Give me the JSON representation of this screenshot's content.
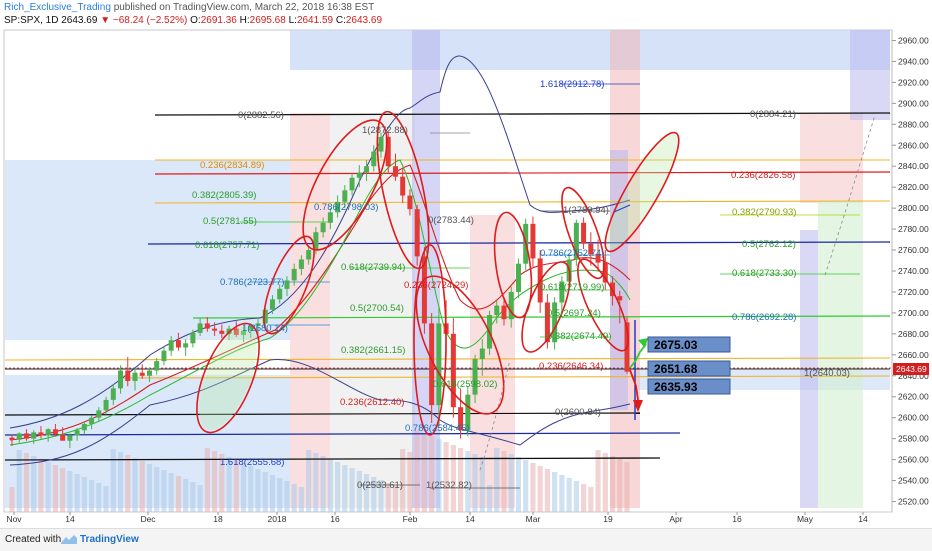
{
  "header": {
    "author": "Rich_Exclusive_Trading",
    "published": "published on TradingView.com, March 22, 2018 16:38 EST",
    "symbol": "SP:SPX, 1D",
    "last": "2643.69",
    "arrow": "▼",
    "change": "−68.24 (−2.52%)",
    "o_label": "O:",
    "o": "2691.36",
    "h_label": "H:",
    "h": "2695.68",
    "l_label": "L:",
    "l": "2641.59",
    "c_label": "C:",
    "c": "2643.69"
  },
  "footer": {
    "created_with": "Created with",
    "brand": "TradingView"
  },
  "chart_data": {
    "type": "candlestick",
    "y_axis": {
      "range": [
        2510,
        2970
      ],
      "ticks": [
        2520,
        2540,
        2560,
        2580,
        2600,
        2620,
        2640,
        2660,
        2680,
        2700,
        2720,
        2740,
        2760,
        2780,
        2800,
        2820,
        2840,
        2860,
        2880,
        2900,
        2920,
        2940,
        2960
      ]
    },
    "x_axis": {
      "labels": [
        "Nov",
        "14",
        "Dec",
        "18",
        "2018",
        "16",
        "Feb",
        "14",
        "Mar",
        "19",
        "Apr",
        "16",
        "May",
        "14"
      ]
    },
    "last_price": "2643.69",
    "price_boxes": [
      "2675.03",
      "2651.68",
      "2635.93"
    ],
    "fib_labels": [
      "0(2882.56)",
      "0.236(2834.89)",
      "0.382(2805.39)",
      "0.5(2781.55)",
      "0.618(2757.71)",
      "0.786(2723.77)",
      "1(2680.14)",
      "1(2872.88)",
      "0.786(2798.03)",
      "0.618(2739.94)",
      "0.5(2700.54)",
      "0.382(2661.15)",
      "0.236(2612.40)",
      "0.786(2584.45)",
      "1.618(2555.68)",
      "0(2533.61)",
      "1(2532.82)",
      "0(2783.44)",
      "0.236(2724.29)",
      "0.236(2646.34)",
      "0.382(2674.49)",
      "0.5(2697.24)",
      "0.618(2719.99)",
      "0.786(2752.74)",
      "1(2789.94)",
      "0(2600.84)",
      "1.618(2912.78)",
      "0(2884.21)",
      "0.236(2826.58)",
      "0.382(2790.93)",
      "0.5(2762.12)",
      "0.618(2733.30)",
      "0.786(2692.28)",
      "1(2640.03)",
      "0.618(2598.02)"
    ],
    "candles": [
      {
        "o": 2581,
        "h": 2584,
        "l": 2573,
        "c": 2579
      },
      {
        "o": 2579,
        "h": 2586,
        "l": 2576,
        "c": 2585
      },
      {
        "o": 2585,
        "h": 2589,
        "l": 2578,
        "c": 2580
      },
      {
        "o": 2580,
        "h": 2588,
        "l": 2575,
        "c": 2586
      },
      {
        "o": 2586,
        "h": 2592,
        "l": 2580,
        "c": 2583
      },
      {
        "o": 2583,
        "h": 2590,
        "l": 2577,
        "c": 2589
      },
      {
        "o": 2589,
        "h": 2594,
        "l": 2582,
        "c": 2584
      },
      {
        "o": 2584,
        "h": 2591,
        "l": 2579,
        "c": 2578
      },
      {
        "o": 2578,
        "h": 2585,
        "l": 2571,
        "c": 2583
      },
      {
        "o": 2583,
        "h": 2590,
        "l": 2578,
        "c": 2588
      },
      {
        "o": 2588,
        "h": 2596,
        "l": 2584,
        "c": 2594
      },
      {
        "o": 2594,
        "h": 2602,
        "l": 2589,
        "c": 2600
      },
      {
        "o": 2600,
        "h": 2610,
        "l": 2596,
        "c": 2607
      },
      {
        "o": 2607,
        "h": 2620,
        "l": 2603,
        "c": 2617
      },
      {
        "o": 2617,
        "h": 2632,
        "l": 2612,
        "c": 2628
      },
      {
        "o": 2628,
        "h": 2650,
        "l": 2623,
        "c": 2645
      },
      {
        "o": 2645,
        "h": 2658,
        "l": 2630,
        "c": 2635
      },
      {
        "o": 2635,
        "h": 2647,
        "l": 2626,
        "c": 2643
      },
      {
        "o": 2643,
        "h": 2651,
        "l": 2637,
        "c": 2640
      },
      {
        "o": 2640,
        "h": 2648,
        "l": 2634,
        "c": 2645
      },
      {
        "o": 2645,
        "h": 2657,
        "l": 2641,
        "c": 2654
      },
      {
        "o": 2654,
        "h": 2668,
        "l": 2650,
        "c": 2664
      },
      {
        "o": 2664,
        "h": 2678,
        "l": 2659,
        "c": 2674
      },
      {
        "o": 2674,
        "h": 2681,
        "l": 2664,
        "c": 2667
      },
      {
        "o": 2667,
        "h": 2675,
        "l": 2659,
        "c": 2671
      },
      {
        "o": 2671,
        "h": 2684,
        "l": 2667,
        "c": 2681
      },
      {
        "o": 2681,
        "h": 2695,
        "l": 2678,
        "c": 2690
      },
      {
        "o": 2690,
        "h": 2696,
        "l": 2682,
        "c": 2685
      },
      {
        "o": 2685,
        "h": 2691,
        "l": 2678,
        "c": 2683
      },
      {
        "o": 2683,
        "h": 2689,
        "l": 2676,
        "c": 2680
      },
      {
        "o": 2680,
        "h": 2688,
        "l": 2674,
        "c": 2685
      },
      {
        "o": 2685,
        "h": 2692,
        "l": 2677,
        "c": 2679
      },
      {
        "o": 2679,
        "h": 2687,
        "l": 2672,
        "c": 2683
      },
      {
        "o": 2683,
        "h": 2690,
        "l": 2676,
        "c": 2688
      },
      {
        "o": 2688,
        "h": 2696,
        "l": 2680,
        "c": 2690
      },
      {
        "o": 2690,
        "h": 2705,
        "l": 2687,
        "c": 2703
      },
      {
        "o": 2703,
        "h": 2717,
        "l": 2699,
        "c": 2713
      },
      {
        "o": 2713,
        "h": 2727,
        "l": 2709,
        "c": 2723
      },
      {
        "o": 2723,
        "h": 2735,
        "l": 2716,
        "c": 2731
      },
      {
        "o": 2731,
        "h": 2747,
        "l": 2726,
        "c": 2742
      },
      {
        "o": 2742,
        "h": 2755,
        "l": 2736,
        "c": 2751
      },
      {
        "o": 2751,
        "h": 2764,
        "l": 2746,
        "c": 2760
      },
      {
        "o": 2760,
        "h": 2782,
        "l": 2756,
        "c": 2777
      },
      {
        "o": 2777,
        "h": 2791,
        "l": 2772,
        "c": 2786
      },
      {
        "o": 2786,
        "h": 2800,
        "l": 2780,
        "c": 2796
      },
      {
        "o": 2796,
        "h": 2812,
        "l": 2791,
        "c": 2806
      },
      {
        "o": 2806,
        "h": 2822,
        "l": 2800,
        "c": 2817
      },
      {
        "o": 2817,
        "h": 2833,
        "l": 2812,
        "c": 2829
      },
      {
        "o": 2829,
        "h": 2841,
        "l": 2820,
        "c": 2834
      },
      {
        "o": 2834,
        "h": 2846,
        "l": 2826,
        "c": 2840
      },
      {
        "o": 2840,
        "h": 2860,
        "l": 2835,
        "c": 2854
      },
      {
        "o": 2854,
        "h": 2872,
        "l": 2848,
        "c": 2868
      },
      {
        "o": 2868,
        "h": 2873,
        "l": 2834,
        "c": 2840
      },
      {
        "o": 2840,
        "h": 2852,
        "l": 2826,
        "c": 2830
      },
      {
        "o": 2830,
        "h": 2838,
        "l": 2805,
        "c": 2812
      },
      {
        "o": 2812,
        "h": 2818,
        "l": 2793,
        "c": 2799
      },
      {
        "o": 2799,
        "h": 2803,
        "l": 2745,
        "c": 2754
      },
      {
        "o": 2754,
        "h": 2763,
        "l": 2680,
        "c": 2690
      },
      {
        "o": 2690,
        "h": 2700,
        "l": 2595,
        "c": 2612
      },
      {
        "o": 2612,
        "h": 2705,
        "l": 2592,
        "c": 2690
      },
      {
        "o": 2690,
        "h": 2712,
        "l": 2660,
        "c": 2680
      },
      {
        "o": 2680,
        "h": 2695,
        "l": 2600,
        "c": 2610
      },
      {
        "o": 2610,
        "h": 2628,
        "l": 2580,
        "c": 2588
      },
      {
        "o": 2588,
        "h": 2630,
        "l": 2582,
        "c": 2622
      },
      {
        "o": 2622,
        "h": 2660,
        "l": 2614,
        "c": 2656
      },
      {
        "o": 2656,
        "h": 2675,
        "l": 2640,
        "c": 2666
      },
      {
        "o": 2666,
        "h": 2702,
        "l": 2660,
        "c": 2698
      },
      {
        "o": 2698,
        "h": 2712,
        "l": 2690,
        "c": 2707
      },
      {
        "o": 2707,
        "h": 2715,
        "l": 2688,
        "c": 2694
      },
      {
        "o": 2694,
        "h": 2725,
        "l": 2686,
        "c": 2720
      },
      {
        "o": 2720,
        "h": 2752,
        "l": 2714,
        "c": 2747
      },
      {
        "o": 2747,
        "h": 2790,
        "l": 2741,
        "c": 2785
      },
      {
        "o": 2785,
        "h": 2792,
        "l": 2744,
        "c": 2752
      },
      {
        "o": 2752,
        "h": 2760,
        "l": 2700,
        "c": 2710
      },
      {
        "o": 2710,
        "h": 2718,
        "l": 2666,
        "c": 2672
      },
      {
        "o": 2672,
        "h": 2715,
        "l": 2665,
        "c": 2710
      },
      {
        "o": 2710,
        "h": 2735,
        "l": 2702,
        "c": 2730
      },
      {
        "o": 2730,
        "h": 2756,
        "l": 2724,
        "c": 2751
      },
      {
        "o": 2751,
        "h": 2789,
        "l": 2745,
        "c": 2786
      },
      {
        "o": 2786,
        "h": 2791,
        "l": 2761,
        "c": 2766
      },
      {
        "o": 2766,
        "h": 2777,
        "l": 2745,
        "c": 2756
      },
      {
        "o": 2756,
        "h": 2770,
        "l": 2740,
        "c": 2748
      },
      {
        "o": 2748,
        "h": 2760,
        "l": 2722,
        "c": 2729
      },
      {
        "o": 2729,
        "h": 2735,
        "l": 2707,
        "c": 2716
      },
      {
        "o": 2716,
        "h": 2721,
        "l": 2690,
        "c": 2712
      },
      {
        "o": 2691,
        "h": 2696,
        "l": 2642,
        "c": 2644
      }
    ]
  }
}
